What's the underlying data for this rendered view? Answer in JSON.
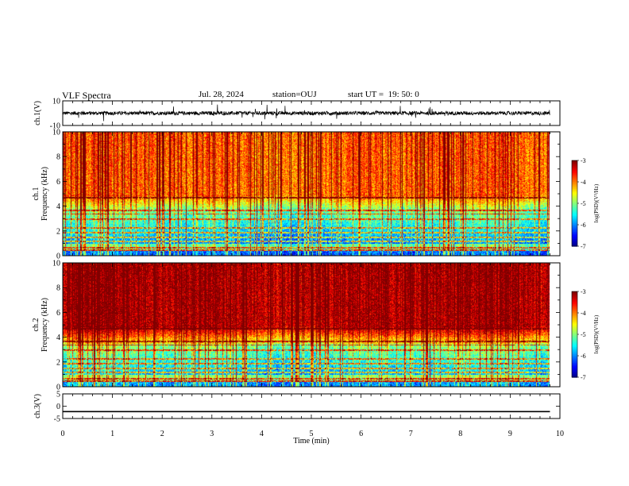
{
  "header": {
    "title": "VLF Spectra",
    "date": "Jul. 28, 2024",
    "station": "station=OUJ",
    "start": "start UT =  19: 50: 0"
  },
  "chart_data": [
    {
      "type": "line",
      "panel": "waveform-ch1",
      "ylabel": "ch.1(V)",
      "ylim": [
        -10,
        10
      ],
      "yticks": [
        "10",
        "-10"
      ],
      "xlim": [
        0,
        10
      ],
      "data_end_min": 9.8,
      "series": [
        {
          "baseline": 0,
          "noise_amplitude": 1.5,
          "spike_max": 6
        }
      ]
    },
    {
      "type": "heatmap",
      "panel": "spectrogram-ch1",
      "ylabel": "Frequency (kHz)",
      "channel_label": "ch.1",
      "ylim": [
        0,
        10
      ],
      "yticks": [
        "0",
        "2",
        "4",
        "6",
        "8",
        "10"
      ],
      "xlim": [
        0,
        10
      ],
      "data_end_min": 9.8,
      "colorbar": {
        "label": "log(PSD)(V²/Hz)",
        "range": [
          -7,
          -3
        ],
        "ticks": [
          "-3",
          "-4",
          "-5",
          "-6",
          "-7"
        ]
      }
    },
    {
      "type": "heatmap",
      "panel": "spectrogram-ch2",
      "ylabel": "Frequency (kHz)",
      "channel_label": "ch.2",
      "ylim": [
        0,
        10
      ],
      "yticks": [
        "0",
        "2",
        "4",
        "6",
        "8",
        "10"
      ],
      "xlim": [
        0,
        10
      ],
      "data_end_min": 9.8,
      "colorbar": {
        "label": "log(PSD)(V²/Hz)",
        "range": [
          -7,
          -3
        ],
        "ticks": [
          "-3",
          "-4",
          "-5",
          "-6",
          "-7"
        ]
      }
    },
    {
      "type": "line",
      "panel": "waveform-ch3",
      "ylabel": "ch.3(V)",
      "ylim": [
        -5,
        5
      ],
      "yticks": [
        "5",
        "0",
        "-5"
      ],
      "xlim": [
        0,
        10
      ],
      "data_end_min": 9.8,
      "series": [
        {
          "baseline": -2.2,
          "noise_amplitude": 0
        }
      ]
    }
  ],
  "xaxis": {
    "label": "Time (min)",
    "ticks": [
      "0",
      "1",
      "2",
      "3",
      "4",
      "5",
      "6",
      "7",
      "8",
      "9",
      "10"
    ]
  }
}
